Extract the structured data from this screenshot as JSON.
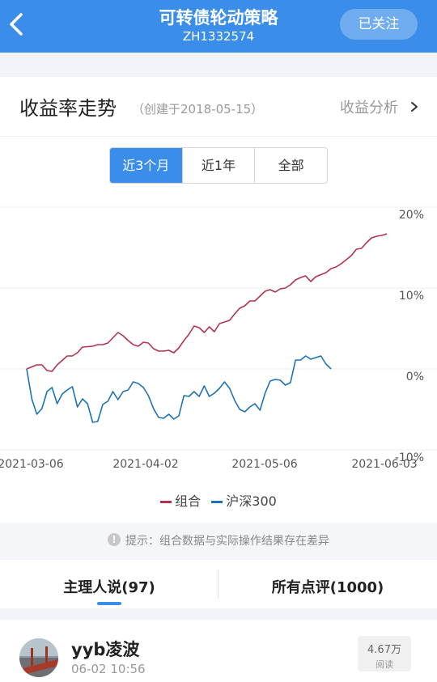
{
  "header": {
    "title": "可转债轮动策略",
    "code": "ZH1332574",
    "follow_label": "已关注"
  },
  "section": {
    "title": "收益率走势",
    "created": "（创建于2018-05-15）",
    "analysis_label": "收益分析"
  },
  "range_tabs": [
    {
      "label": "近3个月",
      "active": true
    },
    {
      "label": "近1年",
      "active": false
    },
    {
      "label": "全部",
      "active": false
    }
  ],
  "chart_data": {
    "type": "line",
    "x_range": [
      "2021-03-06",
      "2021-06-03"
    ],
    "x_ticks": [
      "2021-03-06",
      "2021-04-02",
      "2021-05-06",
      "2021-06-03"
    ],
    "y_ticks": [
      "20%",
      "10%",
      "0%",
      "-10%"
    ],
    "ylim": [
      -10,
      20
    ],
    "grid": true,
    "legend_position": "bottom",
    "series": [
      {
        "name": "组合",
        "color": "#b3334f",
        "values": [
          0.0,
          0.5,
          0.5,
          -0.2,
          -0.3,
          0.5,
          1.6,
          1.6,
          2.0,
          2.7,
          2.8,
          3.0,
          3.0,
          3.2,
          4.5,
          4.1,
          3.5,
          3.0,
          2.8,
          3.3,
          3.2,
          2.5,
          2.2,
          2.2,
          2.3,
          2.0,
          2.6,
          3.5,
          4.3,
          5.3,
          5.1,
          4.5,
          5.2,
          4.6,
          5.6,
          6.0,
          6.8,
          7.5,
          7.8,
          8.4,
          8.4,
          9.0,
          9.6,
          9.8,
          9.5,
          9.9,
          10.0,
          10.4,
          11.0,
          11.3,
          11.5,
          10.8,
          11.4,
          11.9,
          12.4,
          12.6,
          13.0,
          13.5,
          14.0,
          14.8,
          14.9,
          15.6,
          16.2,
          16.4,
          16.5,
          16.7
        ],
        "x_values": [
          0,
          2,
          3,
          4,
          5,
          6,
          8,
          9,
          10,
          11,
          13,
          14,
          15,
          16,
          18,
          19,
          20,
          21,
          22,
          23,
          24,
          25,
          26,
          27,
          28,
          29,
          30,
          31,
          32,
          33,
          34,
          35,
          36,
          37,
          38,
          40,
          41,
          42,
          43,
          44,
          45,
          46,
          47,
          48,
          49,
          50,
          51,
          52,
          53,
          54,
          55,
          56,
          57,
          59,
          60,
          61,
          62,
          63,
          64,
          65,
          66,
          67,
          68,
          69,
          70,
          71
        ]
      },
      {
        "name": "沪深300",
        "color": "#1f72b5",
        "values": [
          0.0,
          -3.7,
          -5.6,
          -4.9,
          -2.8,
          -2.3,
          -4.3,
          -3.1,
          -2.6,
          -2.2,
          -4.7,
          -3.7,
          -4.3,
          -6.6,
          -6.5,
          -4.4,
          -4.0,
          -2.8,
          -3.8,
          -2.8,
          -2.6,
          -1.6,
          -1.8,
          -2.3,
          -3.3,
          -4.9,
          -6.0,
          -6.1,
          -5.6,
          -6.2,
          -5.8,
          -3.3,
          -3.4,
          -2.8,
          -3.4,
          -2.1,
          -3.4,
          -3.0,
          -2.4,
          -1.6,
          -2.4,
          -3.9,
          -5.0,
          -5.3,
          -4.7,
          -4.3,
          -5.1,
          -3.0,
          -1.5,
          -1.3,
          -1.4,
          -2.0,
          -1.7,
          1.1,
          1.1,
          1.6,
          1.2,
          1.4,
          1.6,
          0.6,
          0.0
        ],
        "x_values": [
          0,
          1,
          2,
          3,
          4,
          5,
          6,
          7,
          8,
          9,
          10,
          11,
          12,
          13,
          14,
          15,
          16,
          17,
          18,
          19,
          20,
          21,
          22,
          23,
          24,
          25,
          26,
          27,
          28,
          29,
          30,
          31,
          32,
          33,
          34,
          35,
          36,
          37,
          38,
          39,
          40,
          41,
          42,
          43,
          44,
          45,
          46,
          47,
          48,
          49,
          50,
          51,
          52,
          53,
          54,
          55,
          56,
          57,
          58,
          59,
          60
        ]
      }
    ]
  },
  "legend": {
    "items": [
      "组合",
      "沪深300"
    ]
  },
  "notice": "提示：组合数据与实际操作结果存在差异",
  "tabs": [
    {
      "label": "主理人说(97)",
      "active": true
    },
    {
      "label": "所有点评(1000)",
      "active": false
    }
  ],
  "post": {
    "author": "yyb凌波",
    "time": "06-02 10:56",
    "reads_count": "4.67万",
    "reads_label": "阅读"
  },
  "icons": {
    "back": "chevron-left-icon",
    "analysis": "chevron-right-icon",
    "notice": "exclamation-circle-icon"
  },
  "colors": {
    "primary": "#3a8eea",
    "portfolio": "#b3334f",
    "index": "#1f72b5"
  }
}
